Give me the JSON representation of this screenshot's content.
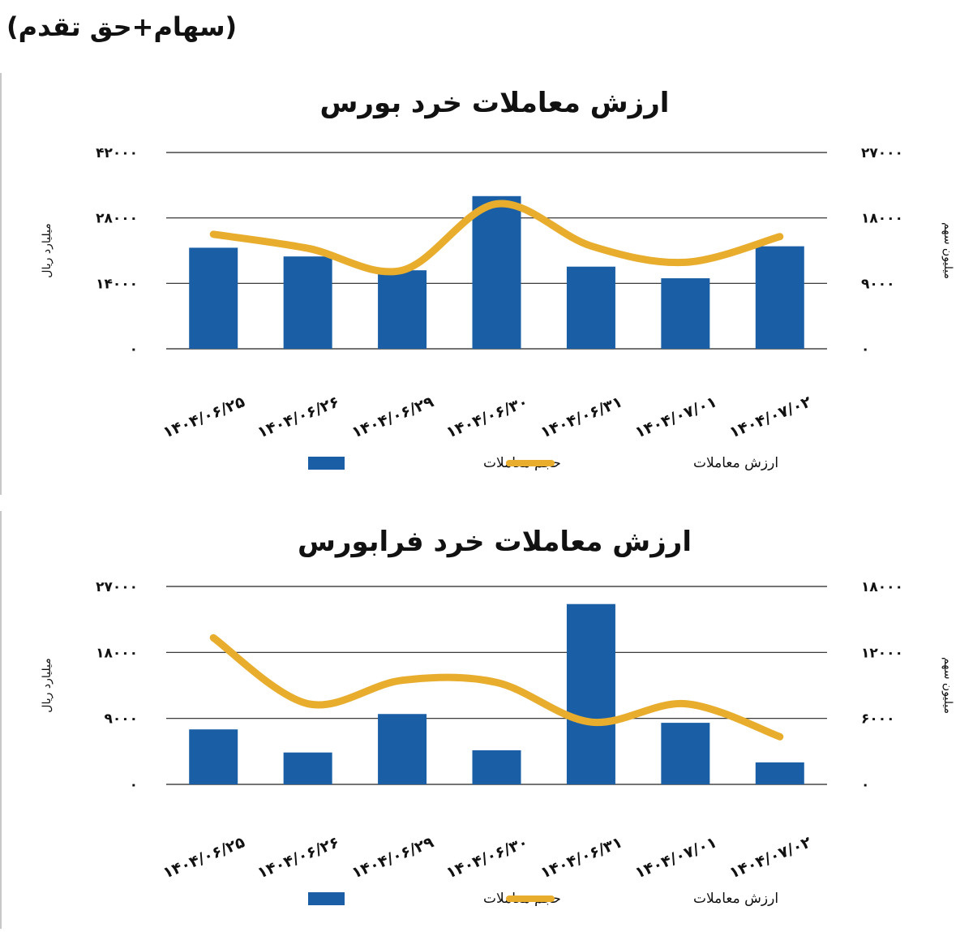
{
  "header": {
    "title": "(سهام+حق تقدم)"
  },
  "colors": {
    "bar": "#1a5fa6",
    "line": "#e8ad2c",
    "grid": "#222222"
  },
  "chart_data": [
    {
      "type": "bar",
      "title": "ارزش معاملات خرد بورس",
      "categories": [
        "۱۴۰۴/۰۶/۲۵",
        "۱۴۰۴/۰۶/۲۶",
        "۱۴۰۴/۰۶/۲۹",
        "۱۴۰۴/۰۶/۳۰",
        "۱۴۰۴/۰۶/۳۱",
        "۱۴۰۴/۰۷/۰۱",
        "۱۴۰۴/۰۷/۰۲"
      ],
      "ylabel": "میلیارد ریال",
      "y2label": "میلیون سهم",
      "ylim": [
        0,
        42000
      ],
      "y2lim": [
        0,
        27000
      ],
      "yticks": [
        "۰",
        "۱۴۰۰۰",
        "۲۸۰۰۰",
        "۴۲۰۰۰"
      ],
      "y2ticks": [
        "۰",
        "۹۰۰۰",
        "۱۸۰۰۰",
        "۲۷۰۰۰"
      ],
      "grid": true,
      "legend_position": "bottom",
      "series": [
        {
          "name": "حجم معاملات",
          "type": "bar",
          "axis": "right",
          "values": [
            13900,
            12700,
            10800,
            21000,
            11300,
            9700,
            14100
          ]
        },
        {
          "name": "ارزش معاملات",
          "type": "line",
          "axis": "left",
          "values": [
            24500,
            21500,
            16800,
            31000,
            22000,
            18500,
            24000
          ]
        }
      ]
    },
    {
      "type": "bar",
      "title": "ارزش معاملات خرد فرابورس",
      "categories": [
        "۱۴۰۴/۰۶/۲۵",
        "۱۴۰۴/۰۶/۲۶",
        "۱۴۰۴/۰۶/۲۹",
        "۱۴۰۴/۰۶/۳۰",
        "۱۴۰۴/۰۶/۳۱",
        "۱۴۰۴/۰۷/۰۱",
        "۱۴۰۴/۰۷/۰۲"
      ],
      "ylabel": "میلیارد ریال",
      "y2label": "میلیون سهم",
      "ylim": [
        0,
        27000
      ],
      "y2lim": [
        0,
        18000
      ],
      "yticks": [
        "۰",
        "۹۰۰۰",
        "۱۸۰۰۰",
        "۲۷۰۰۰"
      ],
      "y2ticks": [
        "۰",
        "۶۰۰۰",
        "۱۲۰۰۰",
        "۱۸۰۰۰"
      ],
      "grid": true,
      "legend_position": "bottom",
      "series": [
        {
          "name": "حجم معاملات",
          "type": "bar",
          "axis": "right",
          "values": [
            5000,
            2900,
            6400,
            3100,
            16400,
            5600,
            2000
          ]
        },
        {
          "name": "ارزش معاملات",
          "type": "line",
          "axis": "left",
          "values": [
            20000,
            11000,
            14200,
            13900,
            8500,
            11000,
            6500
          ]
        }
      ]
    }
  ]
}
